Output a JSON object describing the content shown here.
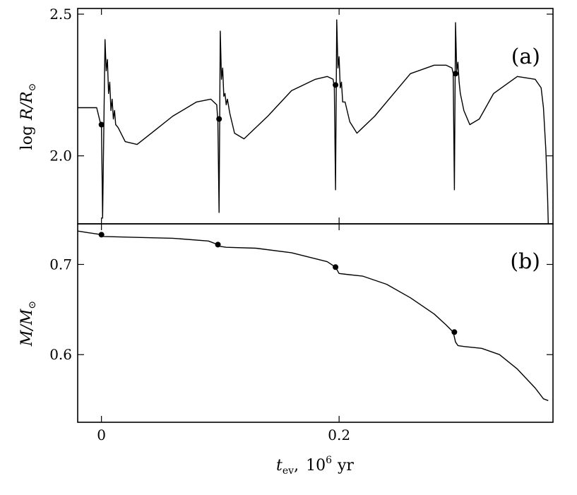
{
  "chart_data": [
    {
      "type": "line",
      "panel_label": "(a)",
      "ylabel": "log R/R⊙",
      "xlim": [
        -0.02,
        0.38
      ],
      "ylim": [
        1.76,
        2.52
      ],
      "xticks": [
        0,
        0.2
      ],
      "xtick_labels": [
        "",
        ""
      ],
      "yticks": [
        2.0,
        2.5
      ],
      "ytick_labels": [
        "2.0",
        "2.5"
      ],
      "grid": false,
      "series": [
        {
          "x": [
            -0.02,
            -0.012,
            -0.004,
            0.0,
            0.001,
            0.003,
            0.004,
            0.005,
            0.006,
            0.007,
            0.008,
            0.009,
            0.01,
            0.011,
            0.012,
            0.014,
            0.02,
            0.03,
            0.045,
            0.06,
            0.08,
            0.092,
            0.097,
            0.098,
            0.099,
            0.1,
            0.101,
            0.102,
            0.103,
            0.104,
            0.105,
            0.106,
            0.108,
            0.112,
            0.12,
            0.14,
            0.16,
            0.18,
            0.19,
            0.195,
            0.196,
            0.197,
            0.198,
            0.199,
            0.2,
            0.201,
            0.202,
            0.203,
            0.205,
            0.209,
            0.215,
            0.23,
            0.26,
            0.28,
            0.29,
            0.295,
            0.296,
            0.297,
            0.298,
            0.299,
            0.3,
            0.301,
            0.302,
            0.305,
            0.31,
            0.318,
            0.33,
            0.35,
            0.365,
            0.37,
            0.372,
            0.374,
            0.3755,
            0.376
          ],
          "y": [
            2.17,
            2.17,
            2.17,
            2.1,
            1.78,
            2.41,
            2.3,
            2.34,
            2.22,
            2.26,
            2.16,
            2.2,
            2.13,
            2.16,
            2.11,
            2.1,
            2.05,
            2.04,
            2.09,
            2.14,
            2.19,
            2.2,
            2.18,
            2.12,
            1.8,
            2.44,
            2.27,
            2.31,
            2.21,
            2.22,
            2.18,
            2.2,
            2.15,
            2.08,
            2.06,
            2.14,
            2.23,
            2.27,
            2.28,
            2.27,
            2.24,
            1.88,
            2.48,
            2.31,
            2.35,
            2.24,
            2.26,
            2.19,
            2.19,
            2.12,
            2.08,
            2.14,
            2.29,
            2.32,
            2.32,
            2.31,
            2.29,
            1.88,
            2.47,
            2.3,
            2.33,
            2.26,
            2.22,
            2.16,
            2.11,
            2.13,
            2.22,
            2.28,
            2.27,
            2.24,
            2.17,
            2.02,
            1.85,
            1.76
          ]
        }
      ],
      "markers": {
        "x": [
          0.0,
          0.099,
          0.197,
          0.298
        ],
        "y": [
          2.11,
          2.13,
          2.25,
          2.29
        ]
      }
    },
    {
      "type": "line",
      "panel_label": "(b)",
      "ylabel": "M/M⊙",
      "xlabel": "t_ev, 10^6 yr",
      "xlim": [
        -0.02,
        0.38
      ],
      "ylim": [
        0.525,
        0.745
      ],
      "xticks": [
        0,
        0.2
      ],
      "xtick_labels": [
        "0",
        "0.2"
      ],
      "yticks": [
        0.6,
        0.7
      ],
      "ytick_labels": [
        "0.6",
        "0.7"
      ],
      "grid": false,
      "series": [
        {
          "x": [
            -0.02,
            -0.01,
            0.0,
            0.002,
            0.03,
            0.06,
            0.09,
            0.098,
            0.1,
            0.105,
            0.13,
            0.16,
            0.19,
            0.197,
            0.2,
            0.206,
            0.22,
            0.24,
            0.26,
            0.28,
            0.29,
            0.296,
            0.298,
            0.3,
            0.305,
            0.32,
            0.335,
            0.35,
            0.365,
            0.372,
            0.376
          ],
          "y": [
            0.737,
            0.735,
            0.733,
            0.731,
            0.73,
            0.729,
            0.726,
            0.722,
            0.72,
            0.719,
            0.718,
            0.713,
            0.703,
            0.697,
            0.69,
            0.689,
            0.687,
            0.678,
            0.663,
            0.645,
            0.633,
            0.625,
            0.614,
            0.61,
            0.609,
            0.607,
            0.6,
            0.584,
            0.563,
            0.551,
            0.549
          ]
        }
      ],
      "markers": {
        "x": [
          0.0,
          0.098,
          0.197,
          0.297
        ],
        "y": [
          0.733,
          0.722,
          0.697,
          0.625
        ]
      }
    }
  ],
  "labels": {
    "top_ylabel_prefix": "log",
    "top_ylabel_main": "R/R",
    "top_ylabel_sub": "⊙",
    "bottom_ylabel_main": "M/M",
    "bottom_ylabel_sub": "⊙",
    "xlabel_var": "t",
    "xlabel_sub": "ev",
    "xlabel_sep": ",",
    "xlabel_base": "10",
    "xlabel_exp": "6",
    "xlabel_unit": "yr"
  }
}
